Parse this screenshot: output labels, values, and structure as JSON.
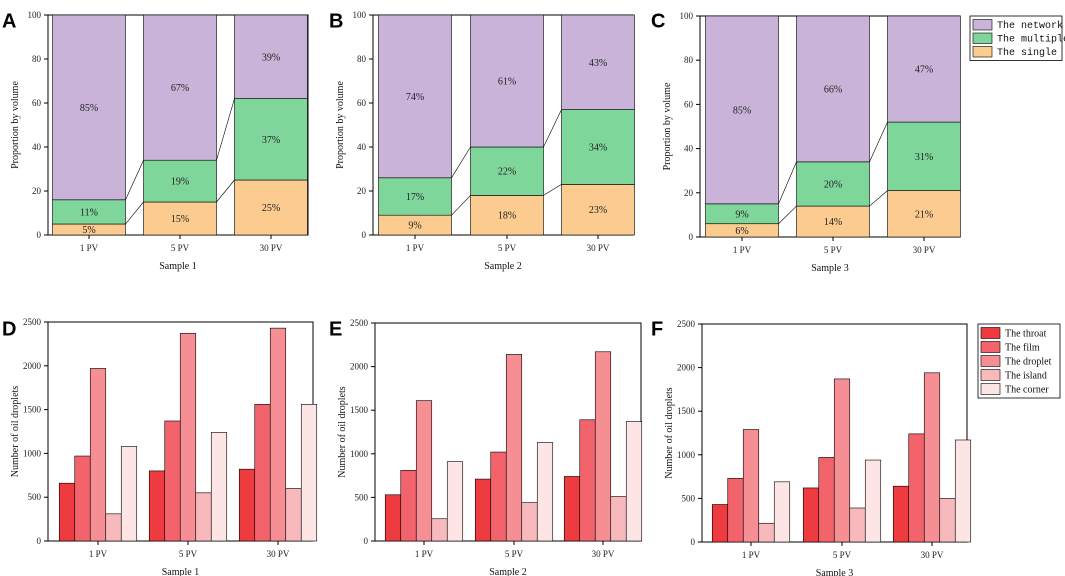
{
  "colors": {
    "network": "#c9b3d9",
    "multiple": "#7fd69b",
    "single": "#fbcb8f",
    "throat": "#ee3b3f",
    "film": "#f2636b",
    "droplet": "#f58f94",
    "island": "#f8b9bd",
    "corner": "#fde4e5"
  },
  "chart_data": [
    {
      "panel": "A",
      "type": "bar",
      "stacked": true,
      "categories": [
        "1 PV",
        "5 PV",
        "30 PV"
      ],
      "xlabel": "Sample 1",
      "ylabel": "Proportion by volume",
      "ylim": [
        0,
        100
      ],
      "yticks": [
        0,
        20,
        40,
        60,
        80,
        100
      ],
      "series": [
        {
          "name": "The single",
          "key": "single",
          "values": [
            5,
            15,
            25
          ],
          "labels": [
            "5%",
            "15%",
            "25%"
          ]
        },
        {
          "name": "The multiple",
          "key": "multiple",
          "values": [
            11,
            19,
            37
          ],
          "labels": [
            "11%",
            "19%",
            "37%"
          ]
        },
        {
          "name": "The network",
          "key": "network",
          "values": [
            85,
            67,
            39
          ],
          "labels": [
            "85%",
            "67%",
            "39%"
          ]
        }
      ]
    },
    {
      "panel": "B",
      "type": "bar",
      "stacked": true,
      "categories": [
        "1 PV",
        "5 PV",
        "30 PV"
      ],
      "xlabel": "Sample 2",
      "ylabel": "Proportion by volume",
      "ylim": [
        0,
        100
      ],
      "yticks": [
        0,
        20,
        40,
        60,
        80,
        100
      ],
      "series": [
        {
          "name": "The single",
          "key": "single",
          "values": [
            9,
            18,
            23
          ],
          "labels": [
            "9%",
            "18%",
            "23%"
          ]
        },
        {
          "name": "The multiple",
          "key": "multiple",
          "values": [
            17,
            22,
            34
          ],
          "labels": [
            "17%",
            "22%",
            "34%"
          ]
        },
        {
          "name": "The network",
          "key": "network",
          "values": [
            74,
            61,
            43
          ],
          "labels": [
            "74%",
            "61%",
            "43%"
          ]
        }
      ]
    },
    {
      "panel": "C",
      "type": "bar",
      "stacked": true,
      "categories": [
        "1 PV",
        "5 PV",
        "30 PV"
      ],
      "xlabel": "Sample 3",
      "ylabel": "Proportion by volume",
      "ylim": [
        0,
        100
      ],
      "yticks": [
        0,
        20,
        40,
        60,
        80,
        100
      ],
      "legend": "top-right",
      "series": [
        {
          "name": "The single",
          "key": "single",
          "values": [
            6,
            14,
            21
          ],
          "labels": [
            "6%",
            "14%",
            "21%"
          ]
        },
        {
          "name": "The multiple",
          "key": "multiple",
          "values": [
            9,
            20,
            31
          ],
          "labels": [
            "9%",
            "20%",
            "31%"
          ]
        },
        {
          "name": "The network",
          "key": "network",
          "values": [
            85,
            66,
            47
          ],
          "labels": [
            "85%",
            "66%",
            "47%"
          ]
        }
      ]
    },
    {
      "panel": "D",
      "type": "bar",
      "stacked": false,
      "categories": [
        "1 PV",
        "5 PV",
        "30 PV"
      ],
      "xlabel": "Sample 1",
      "ylabel": "Number of oil droplets",
      "ylim": [
        0,
        2500
      ],
      "yticks": [
        0,
        500,
        1000,
        1500,
        2000,
        2500
      ],
      "series": [
        {
          "name": "The throat",
          "key": "throat",
          "values": [
            660,
            800,
            820
          ]
        },
        {
          "name": "The film",
          "key": "film",
          "values": [
            970,
            1370,
            1560
          ]
        },
        {
          "name": "The droplet",
          "key": "droplet",
          "values": [
            1970,
            2370,
            2430
          ]
        },
        {
          "name": "The island",
          "key": "island",
          "values": [
            310,
            550,
            600
          ]
        },
        {
          "name": "The corner",
          "key": "corner",
          "values": [
            1080,
            1240,
            1560
          ]
        }
      ]
    },
    {
      "panel": "E",
      "type": "bar",
      "stacked": false,
      "categories": [
        "1 PV",
        "5 PV",
        "30 PV"
      ],
      "xlabel": "Sample 2",
      "ylabel": "Number of oil droplets",
      "ylim": [
        0,
        2500
      ],
      "yticks": [
        0,
        500,
        1000,
        1500,
        2000,
        2500
      ],
      "series": [
        {
          "name": "The throat",
          "key": "throat",
          "values": [
            530,
            710,
            740
          ]
        },
        {
          "name": "The film",
          "key": "film",
          "values": [
            810,
            1020,
            1390
          ]
        },
        {
          "name": "The droplet",
          "key": "droplet",
          "values": [
            1610,
            2140,
            2170
          ]
        },
        {
          "name": "The island",
          "key": "island",
          "values": [
            255,
            440,
            510
          ]
        },
        {
          "name": "The corner",
          "key": "corner",
          "values": [
            910,
            1130,
            1370
          ]
        }
      ]
    },
    {
      "panel": "F",
      "type": "bar",
      "stacked": false,
      "categories": [
        "1 PV",
        "5 PV",
        "30 PV"
      ],
      "xlabel": "Sample 3",
      "ylabel": "Number of oil droplets",
      "ylim": [
        0,
        2500
      ],
      "yticks": [
        0,
        500,
        1000,
        1500,
        2000,
        2500
      ],
      "legend": "top-right",
      "series": [
        {
          "name": "The throat",
          "key": "throat",
          "values": [
            430,
            620,
            640
          ]
        },
        {
          "name": "The film",
          "key": "film",
          "values": [
            730,
            970,
            1240
          ]
        },
        {
          "name": "The droplet",
          "key": "droplet",
          "values": [
            1290,
            1870,
            1940
          ]
        },
        {
          "name": "The island",
          "key": "island",
          "values": [
            215,
            390,
            500
          ]
        },
        {
          "name": "The corner",
          "key": "corner",
          "values": [
            690,
            940,
            1170
          ]
        }
      ]
    }
  ]
}
